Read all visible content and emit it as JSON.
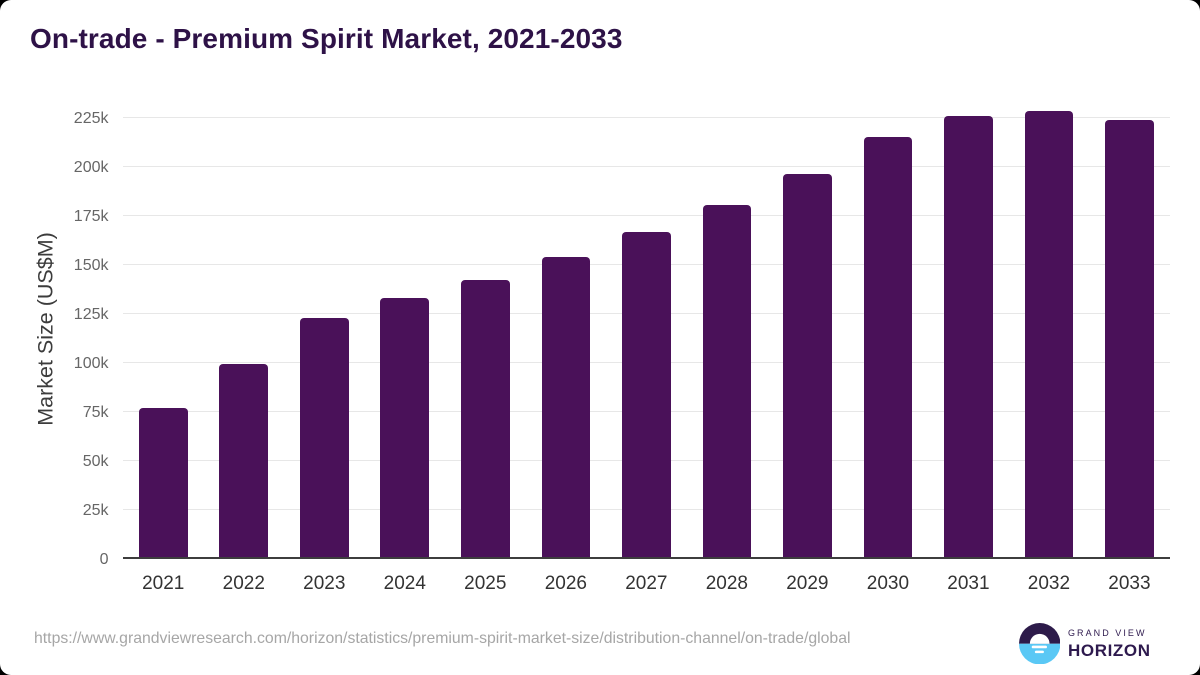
{
  "header": {
    "title": "On-trade - Premium Spirit Market, 2021-2033"
  },
  "chart_data": {
    "type": "bar",
    "title": "On-trade - Premium Spirit Market, 2021-2033",
    "categories": [
      "2021",
      "2022",
      "2023",
      "2024",
      "2025",
      "2026",
      "2027",
      "2028",
      "2029",
      "2030",
      "2031",
      "2032",
      "2033"
    ],
    "series": [
      {
        "name": "Premium Spirit Market Size, On-trade",
        "values_usd_m": [
          76700,
          99100,
          122700,
          132500,
          142100,
          153500,
          166200,
          180200,
          196200,
          214800,
          225700,
          228300,
          223400
        ]
      }
    ],
    "xlabel": "",
    "ylabel": "Market Size (US$M)",
    "ylim_usd_m": [
      0,
      230000
    ],
    "ytick_interval_usd_m": 25000,
    "yticks": [
      {
        "value_usd_m": 0,
        "label": "0"
      },
      {
        "value_usd_m": 25000,
        "label": "25k"
      },
      {
        "value_usd_m": 50000,
        "label": "50k"
      },
      {
        "value_usd_m": 75000,
        "label": "75k"
      },
      {
        "value_usd_m": 100000,
        "label": "100k"
      },
      {
        "value_usd_m": 125000,
        "label": "125k"
      },
      {
        "value_usd_m": 150000,
        "label": "150k"
      },
      {
        "value_usd_m": 175000,
        "label": "175k"
      },
      {
        "value_usd_m": 200000,
        "label": "200k"
      },
      {
        "value_usd_m": 225000,
        "label": "225k"
      }
    ],
    "grid": true,
    "legend": false
  },
  "footer": {
    "source_url": "https://www.grandviewresearch.com/horizon/statistics/premium-spirit-market-size/distribution-channel/on-trade/global",
    "logo": {
      "top_text": "GRAND VIEW",
      "bottom_text": "HORIZON"
    }
  },
  "colors": {
    "bar": "#4a1159",
    "title": "#2e1247",
    "y_tick_label": "#666666",
    "x_tick_label": "#333333",
    "y_axis_title": "#3c3c3c",
    "gridline": "#e7e7e7",
    "axis_line": "#3d3d3d",
    "source_url": "#a6a6a6",
    "logo_dark": "#2d1b4a",
    "logo_blue": "#5ac8f5",
    "logo_text": "#2e1a4e",
    "background": "#ffffff",
    "outer_corners": "#000000"
  }
}
